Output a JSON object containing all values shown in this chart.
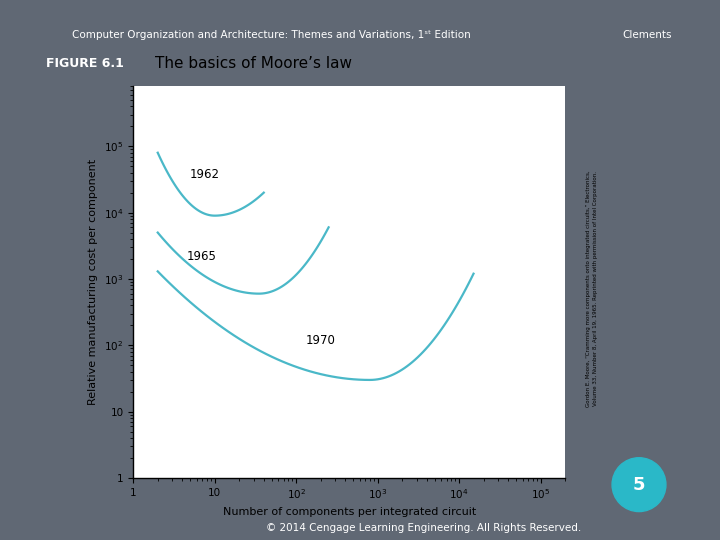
{
  "title_text": "Computer Organization and Architecture: Themes and Variations, 1ˢᵗ Edition",
  "title_right": "Clements",
  "figure_label": "FIGURE 6.1",
  "figure_title": "The basics of Moore’s law",
  "xlabel": "Number of components per integrated circuit",
  "ylabel": "Relative manufacturing cost per component",
  "footer": "© 2014 Cengage Learning Engineering. All Rights Reserved.",
  "side_text": "Gordon E. Moore, “Cramming more components onto integrated circuits,” Electronics,\nVolume 33, Number 8, April 19, 1965. Reprinted with permission of Intel Corporation.",
  "curve_color": "#4ab8c8",
  "bg_color": "#ffffff",
  "slide_bg": "#606874",
  "figure_label_bg": "#2196c8",
  "figure_label_color": "#ffffff",
  "page_number": "5",
  "page_number_bg": "#2ab8c8",
  "header_line_color": "#4ab8c8"
}
